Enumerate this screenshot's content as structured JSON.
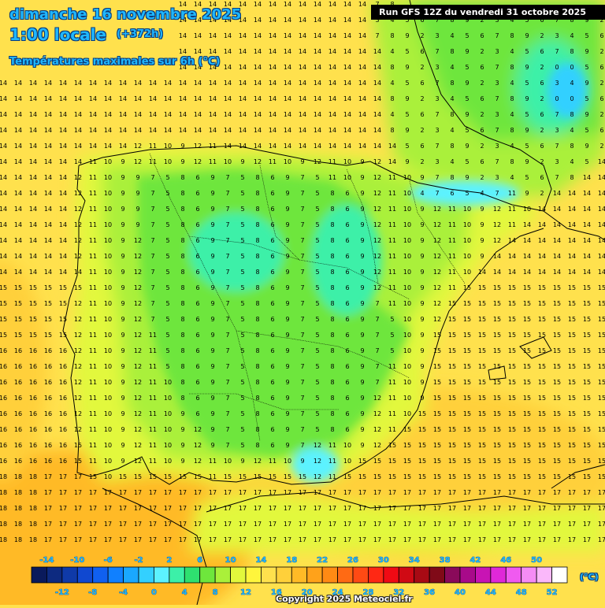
{
  "header": {
    "date": "dimanche 16 novembre 2025",
    "local_time": "1:00 locale",
    "lead_time": "(+372h)",
    "field": "Températures maximales sur 6h (°C)",
    "run": "Run GFS 12Z du vendredi 31 octobre 2025"
  },
  "legend": {
    "unit": "(°C)",
    "upper_labels": [
      "-14",
      "-10",
      "-6",
      "-2",
      "2",
      "6",
      "10",
      "14",
      "18",
      "22",
      "26",
      "30",
      "34",
      "38",
      "42",
      "46",
      "50"
    ],
    "lower_labels": [
      "-12",
      "-8",
      "-4",
      "0",
      "4",
      "8",
      "12",
      "16",
      "20",
      "24",
      "28",
      "32",
      "36",
      "40",
      "44",
      "48",
      "52"
    ],
    "colors": [
      "#0a1a5c",
      "#0d2a80",
      "#0f3aa8",
      "#1048d0",
      "#1060f0",
      "#1080ff",
      "#1aa8ff",
      "#33d0ff",
      "#5cf2ff",
      "#3cf0a8",
      "#2ee070",
      "#6ee63c",
      "#aaf03a",
      "#e2f83c",
      "#fff53c",
      "#ffe14d",
      "#ffd03a",
      "#ffba26",
      "#ffa21a",
      "#ff8a14",
      "#ff6a14",
      "#ff4a14",
      "#ff2814",
      "#f00a14",
      "#d00a14",
      "#a80a14",
      "#800a18",
      "#8a0a5a",
      "#a80a8a",
      "#c814b4",
      "#e028d8",
      "#f05af0",
      "#f58cf5",
      "#fab8fa",
      "#ffffff"
    ]
  },
  "copyright": "Copyright 2025 Meteociel.fr",
  "fill_colors": {
    "sea": "#ffe14d",
    "warm_sw": "#ffba26",
    "warm_se": "#ffd03a",
    "land_mid": "#e2f83c",
    "land_cool": "#aaf03a",
    "interior": "#6ee63c",
    "cold": "#3cf0a8",
    "pyrenees": "#5cf2ff",
    "alps_ice": "#33d0ff",
    "coast": "#000000",
    "grid_text": "#000000"
  }
}
